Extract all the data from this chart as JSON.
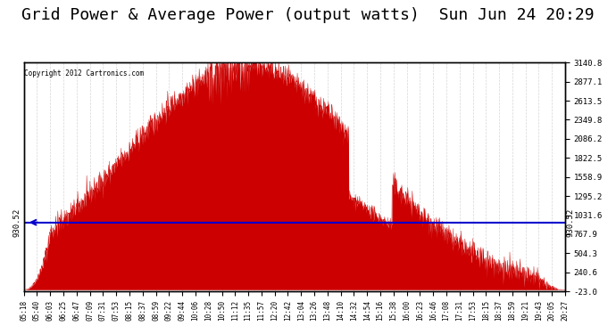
{
  "title": "Grid Power & Average Power (output watts)  Sun Jun 24 20:29",
  "copyright": "Copyright 2012 Cartronics.com",
  "y_right_labels": [
    3140.8,
    2877.1,
    2613.5,
    2349.8,
    2086.2,
    1822.5,
    1558.9,
    1295.2,
    1031.6,
    767.9,
    504.3,
    240.6,
    -23.0
  ],
  "avg_power_label": "930.52",
  "avg_power_value": 930.52,
  "y_min": -23.0,
  "y_max": 3140.8,
  "fill_color": "#cc0000",
  "avg_line_color": "#0000cc",
  "background_color": "#ffffff",
  "grid_color": "#cccccc",
  "title_fontsize": 13,
  "x_labels": [
    "05:18",
    "05:40",
    "06:03",
    "06:25",
    "06:47",
    "07:09",
    "07:31",
    "07:53",
    "08:15",
    "08:37",
    "08:59",
    "09:22",
    "09:44",
    "10:06",
    "10:28",
    "10:50",
    "11:12",
    "11:35",
    "11:57",
    "12:20",
    "12:42",
    "13:04",
    "13:26",
    "13:48",
    "14:10",
    "14:32",
    "14:54",
    "15:16",
    "15:38",
    "16:00",
    "16:23",
    "16:46",
    "17:08",
    "17:31",
    "17:53",
    "18:15",
    "18:37",
    "18:59",
    "19:21",
    "19:43",
    "20:05",
    "20:27"
  ]
}
